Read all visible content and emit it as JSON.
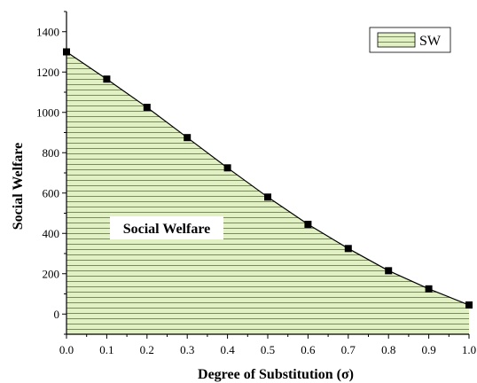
{
  "chart_data": {
    "type": "area",
    "title": "",
    "xlabel": "Degree of Substitution (σ)",
    "ylabel": "Social Welfare",
    "xlim": [
      0.0,
      1.0
    ],
    "ylim": [
      -100,
      1500
    ],
    "x_ticks": [
      "0.0",
      "0.1",
      "0.2",
      "0.3",
      "0.4",
      "0.5",
      "0.6",
      "0.7",
      "0.8",
      "0.9",
      "1.0"
    ],
    "y_ticks": [
      "0",
      "200",
      "400",
      "600",
      "800",
      "1000",
      "1200",
      "1400"
    ],
    "x_tick_values": [
      0.0,
      0.1,
      0.2,
      0.3,
      0.4,
      0.5,
      0.6,
      0.7,
      0.8,
      0.9,
      1.0
    ],
    "y_tick_values": [
      0,
      200,
      400,
      600,
      800,
      1000,
      1200,
      1400
    ],
    "series": [
      {
        "name": "SW",
        "x": [
          0.0,
          0.1,
          0.2,
          0.3,
          0.4,
          0.5,
          0.6,
          0.7,
          0.8,
          0.9,
          1.0
        ],
        "y": [
          1300,
          1165,
          1025,
          875,
          725,
          580,
          445,
          325,
          215,
          125,
          45
        ]
      }
    ],
    "fill_color": "#e2f1c4",
    "hatch_color": "#6f7f54",
    "marker_color": "#000000",
    "legend": "top-right",
    "grid": false,
    "annotation": "Social Welfare"
  }
}
